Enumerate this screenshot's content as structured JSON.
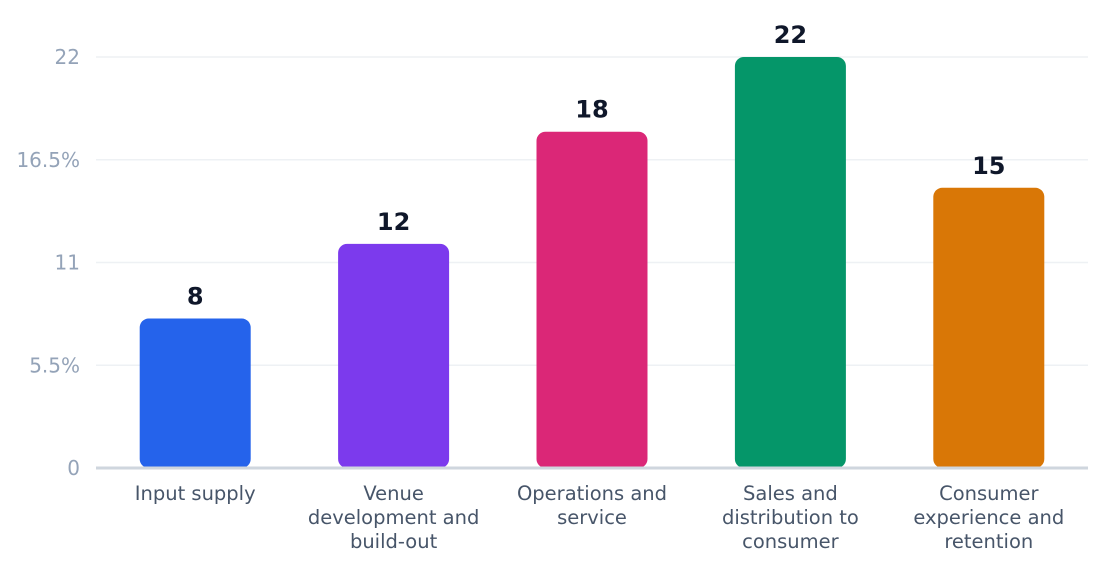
{
  "chart_data": {
    "type": "bar",
    "categories": [
      "Input supply",
      "Venue development and build-out",
      "Operations and service",
      "Sales and distribution to consumer",
      "Consumer experience and retention"
    ],
    "category_lines": [
      [
        "Input supply"
      ],
      [
        "Venue",
        "development and",
        "build-out"
      ],
      [
        "Operations and",
        "service"
      ],
      [
        "Sales and",
        "distribution to",
        "consumer"
      ],
      [
        "Consumer",
        "experience and",
        "retention"
      ]
    ],
    "values": [
      8,
      12,
      18,
      22,
      15
    ],
    "value_labels": [
      "8",
      "12",
      "18",
      "22",
      "15"
    ],
    "colors": [
      "#2563eb",
      "#7c3aed",
      "#db2777",
      "#059669",
      "#d97706"
    ],
    "ylim": [
      0,
      22
    ],
    "yticks": [
      0,
      5.5,
      11,
      16.5,
      22
    ],
    "ytick_labels": [
      "0",
      "5.5%",
      "11",
      "16.5%",
      "22"
    ],
    "grid": true,
    "legend": "none"
  }
}
